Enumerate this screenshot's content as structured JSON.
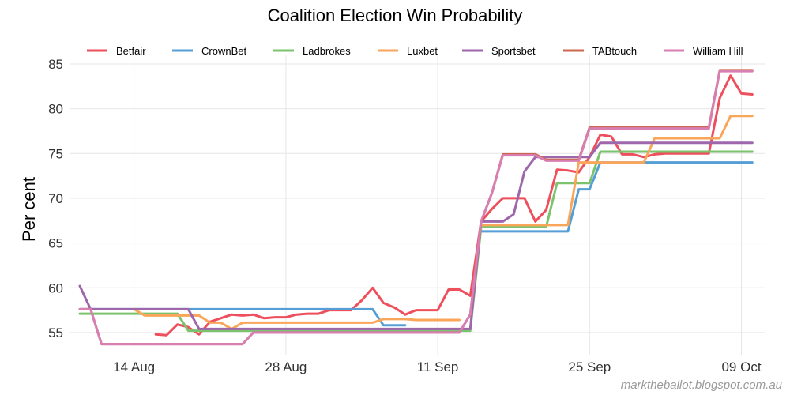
{
  "chart_data": {
    "type": "line",
    "title": "Coalition Election Win Probability",
    "xlabel": "",
    "ylabel": "Per cent",
    "ylim": [
      53,
      86
    ],
    "grid": true,
    "legend_placement": "top",
    "x_start": "09 Aug",
    "x_step_days": 1,
    "x_count": 63,
    "x_ticks": [
      {
        "label": "14 Aug",
        "day": 5
      },
      {
        "label": "28 Aug",
        "day": 19
      },
      {
        "label": "11 Sep",
        "day": 33
      },
      {
        "label": "25 Sep",
        "day": 47
      },
      {
        "label": "09 Oct",
        "day": 61
      }
    ],
    "y_ticks": [
      55,
      60,
      65,
      70,
      75,
      80,
      85
    ],
    "series": [
      {
        "name": "Betfair",
        "color": "#ee4f5c",
        "values": [
          null,
          null,
          null,
          null,
          null,
          null,
          null,
          54.8,
          54.7,
          55.9,
          55.6,
          54.8,
          56.2,
          56.6,
          57.0,
          56.9,
          57.0,
          56.6,
          56.7,
          56.7,
          57.0,
          57.1,
          57.1,
          57.5,
          57.5,
          57.5,
          58.6,
          60.0,
          58.3,
          57.8,
          57.0,
          57.5,
          57.5,
          57.5,
          59.8,
          59.8,
          59.1,
          67.4,
          68.8,
          70.0,
          70.0,
          70.0,
          67.4,
          68.7,
          73.2,
          73.1,
          72.9,
          74.6,
          77.1,
          76.9,
          74.9,
          74.9,
          74.6,
          74.9,
          75.0,
          75.0,
          75.0,
          75.0,
          75.0,
          81.2,
          83.7,
          81.7,
          81.6
        ]
      },
      {
        "name": "CrownBet",
        "color": "#559fd6",
        "values": [
          57.6,
          57.6,
          57.6,
          57.6,
          57.6,
          57.6,
          57.6,
          57.6,
          57.6,
          57.6,
          57.6,
          57.6,
          57.6,
          57.6,
          57.6,
          57.6,
          57.6,
          57.6,
          57.6,
          57.6,
          57.6,
          57.6,
          57.6,
          57.6,
          57.6,
          57.6,
          57.6,
          57.6,
          55.8,
          55.8,
          55.8,
          null,
          null,
          null,
          null,
          null,
          null,
          66.3,
          66.3,
          66.3,
          66.3,
          66.3,
          66.3,
          66.3,
          66.3,
          66.3,
          71.0,
          71.0,
          74.0,
          74.0,
          74.0,
          74.0,
          74.0,
          74.0,
          74.0,
          74.0,
          74.0,
          74.0,
          74.0,
          74.0,
          74.0,
          74.0,
          74.0
        ]
      },
      {
        "name": "Ladbrokes",
        "color": "#7cc36e",
        "values": [
          57.1,
          57.1,
          57.1,
          57.1,
          57.1,
          57.1,
          57.1,
          57.1,
          57.1,
          57.1,
          55.2,
          55.2,
          55.2,
          55.2,
          55.2,
          55.2,
          55.2,
          55.2,
          55.2,
          55.2,
          55.2,
          55.2,
          55.2,
          55.2,
          55.2,
          55.2,
          55.2,
          55.2,
          55.2,
          55.2,
          55.2,
          55.2,
          55.2,
          55.2,
          55.2,
          55.2,
          55.2,
          66.8,
          66.8,
          66.8,
          66.8,
          66.8,
          66.8,
          66.8,
          71.7,
          71.7,
          71.7,
          71.7,
          75.2,
          75.2,
          75.2,
          75.2,
          75.2,
          75.2,
          75.2,
          75.2,
          75.2,
          75.2,
          75.2,
          75.2,
          75.2,
          75.2,
          75.2
        ]
      },
      {
        "name": "Luxbet",
        "color": "#f9a65a",
        "values": [
          null,
          null,
          null,
          null,
          null,
          57.6,
          56.9,
          56.9,
          56.9,
          56.9,
          56.9,
          56.9,
          56.1,
          56.1,
          55.4,
          56.1,
          56.1,
          56.1,
          56.1,
          56.1,
          56.1,
          56.1,
          56.1,
          56.1,
          56.1,
          56.1,
          56.1,
          56.1,
          56.5,
          56.5,
          56.5,
          56.4,
          56.4,
          56.4,
          56.4,
          56.4,
          null,
          67.0,
          67.0,
          67.0,
          67.0,
          67.0,
          67.0,
          67.0,
          67.0,
          67.0,
          74.0,
          74.0,
          74.0,
          74.0,
          74.0,
          74.0,
          74.0,
          76.7,
          76.7,
          76.7,
          76.7,
          76.7,
          76.7,
          76.7,
          79.2,
          79.2,
          79.2
        ]
      },
      {
        "name": "Sportsbet",
        "color": "#9e66ab",
        "values": [
          60.2,
          57.6,
          57.6,
          57.6,
          57.6,
          57.6,
          57.6,
          57.6,
          57.6,
          57.6,
          57.6,
          55.4,
          55.4,
          55.4,
          55.4,
          55.4,
          55.4,
          55.4,
          55.4,
          55.4,
          55.4,
          55.4,
          55.4,
          55.4,
          55.4,
          55.4,
          55.4,
          55.4,
          55.4,
          55.4,
          55.4,
          55.4,
          55.4,
          55.4,
          55.4,
          55.4,
          55.4,
          67.4,
          67.4,
          67.4,
          68.2,
          73.0,
          74.6,
          74.6,
          74.6,
          74.6,
          74.6,
          74.6,
          76.2,
          76.2,
          76.2,
          76.2,
          76.2,
          76.2,
          76.2,
          76.2,
          76.2,
          76.2,
          76.2,
          76.2,
          76.2,
          76.2,
          76.2
        ]
      },
      {
        "name": "TABtouch",
        "color": "#cd6752",
        "values": [
          57.6,
          57.6,
          53.7,
          53.7,
          53.7,
          53.7,
          53.7,
          53.7,
          53.7,
          53.7,
          53.7,
          53.7,
          53.7,
          53.7,
          53.7,
          53.7,
          55.0,
          55.0,
          55.0,
          55.0,
          55.0,
          55.0,
          55.0,
          55.0,
          55.0,
          55.0,
          55.0,
          55.0,
          55.0,
          55.0,
          55.0,
          55.0,
          55.0,
          55.0,
          55.0,
          55.0,
          57.0,
          67.4,
          70.6,
          74.9,
          74.9,
          74.9,
          74.9,
          74.3,
          74.3,
          74.3,
          74.3,
          77.9,
          77.9,
          77.9,
          77.9,
          77.9,
          77.9,
          77.9,
          77.9,
          77.9,
          77.9,
          77.9,
          77.9,
          84.3,
          84.3,
          84.3,
          84.3
        ]
      },
      {
        "name": "William Hill",
        "color": "#d77fb3",
        "values": [
          57.6,
          57.6,
          53.7,
          53.7,
          53.7,
          53.7,
          53.7,
          53.7,
          53.7,
          53.7,
          53.7,
          53.7,
          53.7,
          53.7,
          53.7,
          53.7,
          55.0,
          55.0,
          55.0,
          55.0,
          55.0,
          55.0,
          55.0,
          55.0,
          55.0,
          55.0,
          55.0,
          55.0,
          55.0,
          55.0,
          55.0,
          55.0,
          55.0,
          55.0,
          55.0,
          55.0,
          57.0,
          67.4,
          70.6,
          74.8,
          74.8,
          74.8,
          74.8,
          74.2,
          74.2,
          74.2,
          74.2,
          77.8,
          77.8,
          77.8,
          77.8,
          77.8,
          77.8,
          77.8,
          77.8,
          77.8,
          77.8,
          77.8,
          77.8,
          84.2,
          84.2,
          84.2,
          84.2
        ]
      }
    ]
  },
  "watermark": "marktheballot.blogspot.com.au"
}
